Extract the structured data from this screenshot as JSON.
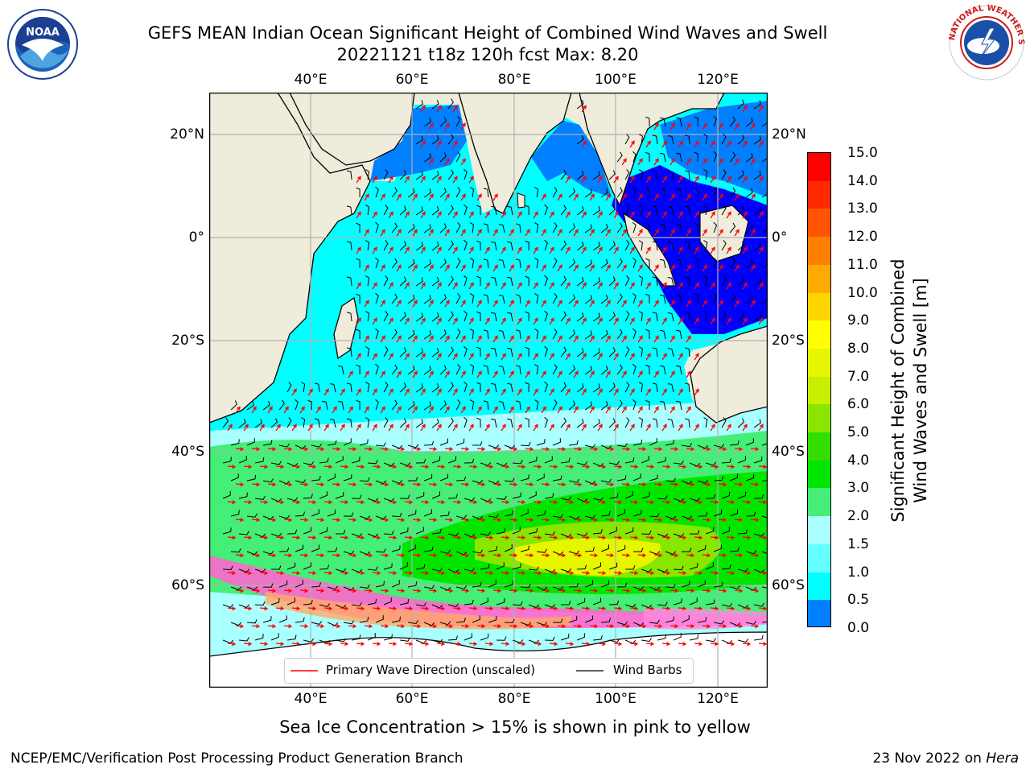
{
  "title": {
    "line1": "GEFS MEAN Indian Ocean Significant Height of Combined Wind Waves and Swell",
    "line2": "20221121 t18z 120h fcst   Max: 8.20"
  },
  "logos": {
    "noaa_text": "NOAA",
    "nws_text": "NATIONAL WEATHER SERVICE"
  },
  "map": {
    "lon_ticks": [
      "40°E",
      "60°E",
      "80°E",
      "100°E",
      "120°E"
    ],
    "lat_ticks_left": [
      "20°N",
      "0°",
      "20°S",
      "40°S",
      "60°S"
    ],
    "lat_ticks_right": [
      "20°N",
      "0°",
      "20°S",
      "40°S",
      "60°S"
    ],
    "colors": {
      "land": "#efecdc",
      "ocean_low": "#00ffff",
      "grid": "#b0b0b0"
    }
  },
  "colorbar": {
    "title_line1": "Significant Height of Combined",
    "title_line2": "Wind Waves and Swell [m]",
    "labels": [
      "15.0",
      "14.0",
      "13.0",
      "12.0",
      "11.0",
      "10.0",
      "9.0",
      "8.0",
      "7.0",
      "6.0",
      "5.0",
      "4.0",
      "3.0",
      "2.0",
      "1.5",
      "1.0",
      "0.5",
      "0.0"
    ],
    "bands": [
      "#ff0000",
      "#ff2a00",
      "#ff5500",
      "#ff8000",
      "#ffaa00",
      "#ffd500",
      "#ffff00",
      "#e6f500",
      "#c8ee00",
      "#8ae600",
      "#33dd00",
      "#00e600",
      "#44ee77",
      "#aaffff",
      "#66ffff",
      "#00ffff",
      "#0080ff",
      "#0000ff"
    ]
  },
  "legend": {
    "wave_label": "Primary Wave Direction (unscaled)",
    "wind_label": "Wind Barbs"
  },
  "note": "Sea Ice Concentration > 15% is shown in pink to yellow",
  "footer": {
    "left": "NCEP/EMC/Verification Post Processing Product Generation Branch",
    "right_prefix": "23 Nov 2022 on",
    "right_host": "Hera"
  }
}
